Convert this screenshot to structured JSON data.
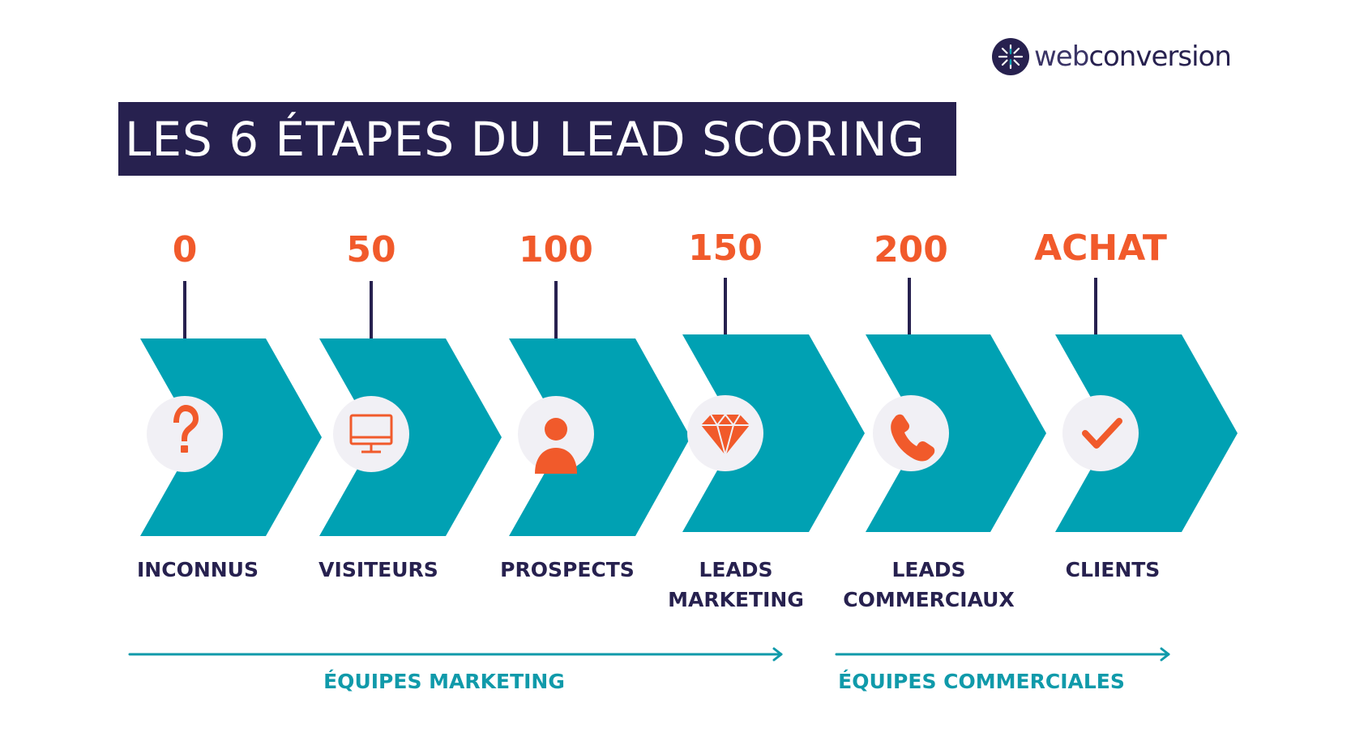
{
  "logo": {
    "text_light": "web",
    "text_bold": "conversion"
  },
  "title": "LES 6 ÉTAPES DU LEAD SCORING",
  "colors": {
    "navy": "#27214f",
    "teal": "#00a1b3",
    "orange": "#f15a2b",
    "circle_bg": "#f1f0f5",
    "team_teal": "#109aaa"
  },
  "stages": [
    {
      "score": "0",
      "label_line1": "INCONNUS",
      "label_line2": "",
      "icon": "question-mark-icon"
    },
    {
      "score": "50",
      "label_line1": "VISITEURS",
      "label_line2": "",
      "icon": "monitor-icon"
    },
    {
      "score": "100",
      "label_line1": "PROSPECTS",
      "label_line2": "",
      "icon": "user-icon"
    },
    {
      "score": "150",
      "label_line1": "LEADS",
      "label_line2": "MARKETING",
      "icon": "diamond-icon"
    },
    {
      "score": "200",
      "label_line1": "LEADS",
      "label_line2": "COMMERCIAUX",
      "icon": "phone-icon"
    },
    {
      "score": "ACHAT",
      "label_line1": "CLIENTS",
      "label_line2": "",
      "icon": "checkmark-icon"
    }
  ],
  "teams": [
    {
      "label": "ÉQUIPES MARKETING"
    },
    {
      "label": "ÉQUIPES COMMERCIALES"
    }
  ]
}
